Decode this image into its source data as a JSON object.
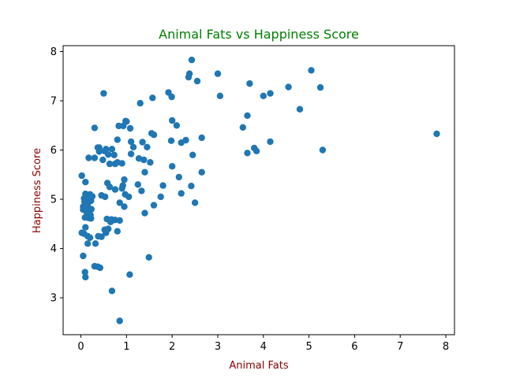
{
  "chart_data": {
    "type": "scatter",
    "title": "Animal Fats vs Happiness Score",
    "xlabel": "Animal Fats",
    "ylabel": "Happiness Score",
    "xlim": [
      -0.39,
      8.19
    ],
    "ylim": [
      2.25,
      8.12
    ],
    "xticks": [
      0,
      1,
      2,
      3,
      4,
      5,
      6,
      7,
      8
    ],
    "yticks": [
      3,
      4,
      5,
      6,
      7,
      8
    ],
    "grid": false,
    "colors": {
      "marker": "#1f77b4",
      "title": "#008000",
      "axis_label": "#8b0000"
    },
    "x": [
      0.5,
      2.43,
      5.05,
      3.0,
      5.25,
      4.55,
      3.7,
      2.55,
      2.38,
      2.36,
      4.15,
      4.0,
      3.05,
      1.92,
      1.57,
      1.99,
      0.3,
      0.37,
      3.65,
      3.8,
      1.3,
      1.0,
      4.8,
      2.0,
      2.1,
      0.93,
      0.83,
      1.08,
      0.4,
      0.8,
      1.1,
      0.98,
      1.55,
      1.6,
      2.65,
      3.55,
      4.15,
      3.85,
      2.3,
      2.2,
      1.98,
      0.4,
      0.55,
      0.68,
      0.52,
      1.15,
      1.35,
      1.45,
      0.6,
      0.73,
      1.1,
      0.3,
      3.65,
      5.3,
      0.8,
      1.27,
      1.38,
      0.48,
      0.9,
      0.63,
      0.75,
      1.4,
      1.52,
      0.17,
      0.1,
      0.95,
      1.25,
      2.0,
      2.45,
      2.65,
      2.15,
      1.8,
      0.58,
      0.92,
      0.9,
      0.75,
      0.63,
      1.33,
      1.75,
      2.2,
      0.97,
      1.05,
      0.15,
      0.2,
      0.07,
      0.02,
      0.12,
      2.42,
      0.22,
      0.45,
      0.85,
      0.53,
      0.95,
      0.2,
      0.1,
      0.12,
      0.08,
      0.25,
      0.18,
      1.6,
      2.5,
      0.05,
      0.15,
      0.23,
      0.13,
      0.1,
      0.17,
      0.22,
      0.21,
      0.09,
      0.05,
      0.57,
      0.67,
      0.75,
      0.85,
      0.65,
      1.4,
      0.6,
      0.1,
      0.07,
      0.02,
      0.15,
      0.2,
      0.32,
      0.45,
      0.38,
      0.55,
      0.8,
      0.52,
      0.15,
      0.3,
      1.49,
      0.05,
      0.37,
      0.42,
      0.09,
      0.1,
      1.07,
      0.68,
      0.85,
      7.8
    ],
    "y": [
      7.15,
      7.83,
      7.62,
      7.55,
      7.27,
      7.28,
      7.35,
      7.4,
      7.55,
      7.48,
      7.15,
      7.1,
      7.1,
      7.17,
      7.06,
      7.08,
      6.45,
      6.05,
      6.7,
      6.04,
      6.95,
      6.58,
      6.83,
      6.6,
      6.5,
      6.49,
      6.49,
      6.44,
      6.05,
      6.21,
      6.17,
      6.59,
      6.34,
      6.31,
      6.25,
      6.46,
      6.17,
      5.98,
      6.2,
      6.15,
      6.19,
      5.97,
      6.02,
      6.02,
      5.98,
      6.06,
      6.16,
      6.06,
      5.91,
      5.9,
      5.92,
      5.84,
      5.94,
      6.0,
      5.75,
      5.83,
      5.8,
      5.8,
      5.73,
      5.72,
      5.72,
      5.55,
      5.75,
      5.84,
      5.35,
      5.4,
      5.3,
      5.67,
      5.9,
      5.55,
      5.45,
      5.28,
      5.33,
      5.28,
      5.22,
      5.2,
      5.25,
      5.17,
      5.05,
      5.12,
      5.1,
      5.05,
      5.05,
      5.1,
      5.02,
      5.48,
      5.05,
      5.27,
      4.97,
      5.08,
      4.93,
      5.05,
      4.85,
      4.98,
      5.11,
      5.0,
      4.95,
      5.06,
      4.95,
      4.88,
      4.93,
      4.85,
      4.85,
      4.8,
      4.73,
      4.82,
      4.62,
      4.61,
      4.68,
      4.63,
      4.79,
      4.6,
      4.59,
      4.58,
      4.57,
      4.54,
      4.72,
      4.4,
      4.43,
      4.3,
      4.32,
      4.25,
      4.22,
      4.1,
      4.24,
      4.25,
      4.32,
      4.35,
      4.38,
      4.1,
      3.64,
      3.82,
      3.85,
      3.63,
      3.61,
      3.52,
      3.42,
      3.47,
      3.14,
      2.53,
      6.33
    ]
  }
}
